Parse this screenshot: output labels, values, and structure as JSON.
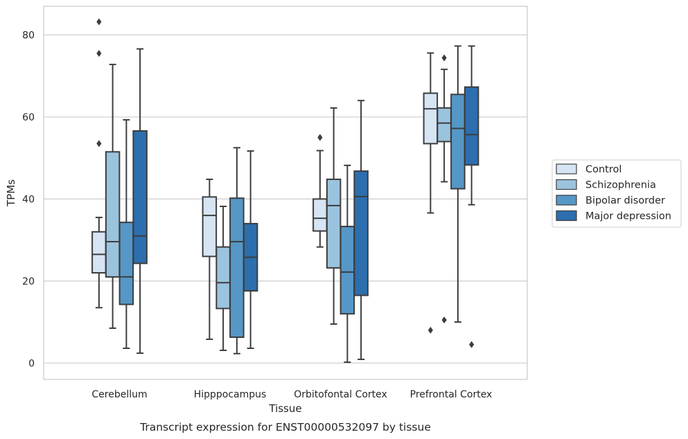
{
  "chart_data": {
    "type": "box",
    "title": "",
    "caption": "Transcript expression for ENST00000532097 by tissue",
    "xlabel": "Tissue",
    "ylabel": "TPMs",
    "ylim": [
      -4,
      87
    ],
    "yticks": [
      0,
      20,
      40,
      60,
      80
    ],
    "grid": "horizontal",
    "legend_position": "right",
    "categories": [
      "Cerebellum",
      "Hipppocampus",
      "Orbitofontal Cortex",
      "Prefrontal Cortex"
    ],
    "series": [
      {
        "name": "Control",
        "color": "#d6e4f3",
        "boxes": [
          {
            "whisker_low": 13.5,
            "q1": 22,
            "median": 26.5,
            "q3": 32,
            "whisker_high": 35.5,
            "outliers": [
              53.5,
              75.5,
              83.2
            ]
          },
          {
            "whisker_low": 5.8,
            "q1": 26,
            "median": 36,
            "q3": 40.5,
            "whisker_high": 44.8,
            "outliers": []
          },
          {
            "whisker_low": 28.3,
            "q1": 32.2,
            "median": 35.3,
            "q3": 40,
            "whisker_high": 51.8,
            "outliers": [
              55
            ]
          },
          {
            "whisker_low": 36.6,
            "q1": 53.5,
            "median": 62,
            "q3": 65.8,
            "whisker_high": 75.6,
            "outliers": [
              8
            ]
          }
        ]
      },
      {
        "name": "Schizophrenia",
        "color": "#9ac3de",
        "boxes": [
          {
            "whisker_low": 8.5,
            "q1": 21,
            "median": 29.6,
            "q3": 51.5,
            "whisker_high": 72.8,
            "outliers": []
          },
          {
            "whisker_low": 3.1,
            "q1": 13.3,
            "median": 19.6,
            "q3": 28.3,
            "whisker_high": 38.2,
            "outliers": []
          },
          {
            "whisker_low": 9.5,
            "q1": 23.2,
            "median": 38.4,
            "q3": 44.8,
            "whisker_high": 62.2,
            "outliers": []
          },
          {
            "whisker_low": 44.2,
            "q1": 54,
            "median": 58.5,
            "q3": 62.2,
            "whisker_high": 71.6,
            "outliers": [
              10.5,
              74.4
            ]
          }
        ]
      },
      {
        "name": "Bipolar disorder",
        "color": "#5597c6",
        "boxes": [
          {
            "whisker_low": 3.6,
            "q1": 14.3,
            "median": 21,
            "q3": 34.3,
            "whisker_high": 59.3,
            "outliers": []
          },
          {
            "whisker_low": 2.3,
            "q1": 6.3,
            "median": 29.6,
            "q3": 40.2,
            "whisker_high": 52.5,
            "outliers": []
          },
          {
            "whisker_low": 0.2,
            "q1": 12,
            "median": 22.2,
            "q3": 33.3,
            "whisker_high": 48.2,
            "outliers": []
          },
          {
            "whisker_low": 10,
            "q1": 42.5,
            "median": 57.2,
            "q3": 65.5,
            "whisker_high": 77.3,
            "outliers": []
          }
        ]
      },
      {
        "name": "Major depression",
        "color": "#2c6eae",
        "boxes": [
          {
            "whisker_low": 2.4,
            "q1": 24.3,
            "median": 31,
            "q3": 56.6,
            "whisker_high": 76.6,
            "outliers": []
          },
          {
            "whisker_low": 3.6,
            "q1": 17.6,
            "median": 25.8,
            "q3": 34,
            "whisker_high": 51.7,
            "outliers": []
          },
          {
            "whisker_low": 0.9,
            "q1": 16.5,
            "median": 40.6,
            "q3": 46.8,
            "whisker_high": 64,
            "outliers": []
          },
          {
            "whisker_low": 38.6,
            "q1": 48.3,
            "median": 55.7,
            "q3": 67.3,
            "whisker_high": 77.3,
            "outliers": [
              4.5
            ]
          }
        ]
      }
    ]
  }
}
